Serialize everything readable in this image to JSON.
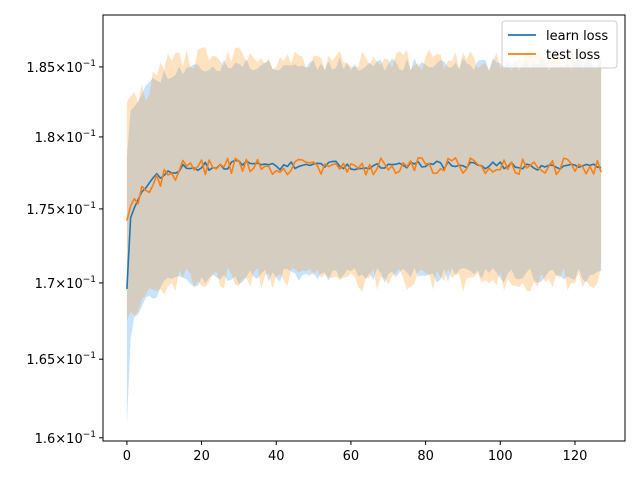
{
  "chart_data": {
    "type": "line",
    "title": "",
    "xlabel": "",
    "ylabel": "",
    "xlim": [
      -6.4,
      133.4
    ],
    "ylim": [
      0.1598,
      0.1888
    ],
    "yscale": "log",
    "x_ticks": [
      0,
      20,
      40,
      60,
      80,
      100,
      120
    ],
    "y_ticks": [
      {
        "value": 0.16,
        "mantissa": "1.6",
        "base": "10",
        "exp": "−1"
      },
      {
        "value": 0.165,
        "mantissa": "1.65",
        "base": "10",
        "exp": "−1"
      },
      {
        "value": 0.17,
        "mantissa": "1.7",
        "base": "10",
        "exp": "−1"
      },
      {
        "value": 0.175,
        "mantissa": "1.75",
        "base": "10",
        "exp": "−1"
      },
      {
        "value": 0.18,
        "mantissa": "1.8",
        "base": "10",
        "exp": "−1"
      },
      {
        "value": 0.185,
        "mantissa": "1.85",
        "base": "10",
        "exp": "−1"
      }
    ],
    "grid": false,
    "legend": "top-right",
    "x": {
      "start": 0,
      "end": 127,
      "step": 1
    },
    "series": [
      {
        "name": "learn loss",
        "color": "#1f77b4",
        "band_color": "#1e90ff",
        "mean_anchors": [
          [
            0,
            0.1696
          ],
          [
            1,
            0.1744
          ],
          [
            3,
            0.1755
          ],
          [
            5,
            0.1765
          ],
          [
            7,
            0.1772
          ],
          [
            10,
            0.1774
          ],
          [
            15,
            0.1778
          ],
          [
            20,
            0.1779
          ],
          [
            30,
            0.1781
          ],
          [
            40,
            0.178
          ],
          [
            60,
            0.178
          ],
          [
            80,
            0.178
          ],
          [
            100,
            0.178
          ],
          [
            127,
            0.1778
          ]
        ],
        "lower_anchors": [
          [
            0,
            0.1608
          ],
          [
            1,
            0.1665
          ],
          [
            3,
            0.1683
          ],
          [
            5,
            0.169
          ],
          [
            8,
            0.1695
          ],
          [
            12,
            0.17
          ],
          [
            20,
            0.1703
          ],
          [
            40,
            0.1705
          ],
          [
            60,
            0.1705
          ],
          [
            80,
            0.1705
          ],
          [
            100,
            0.1705
          ],
          [
            127,
            0.1705
          ]
        ],
        "upper_anchors": [
          [
            0,
            0.1785
          ],
          [
            1,
            0.1823
          ],
          [
            3,
            0.1828
          ],
          [
            5,
            0.1835
          ],
          [
            8,
            0.1842
          ],
          [
            12,
            0.1847
          ],
          [
            20,
            0.185
          ],
          [
            40,
            0.1852
          ],
          [
            60,
            0.1852
          ],
          [
            80,
            0.1852
          ],
          [
            100,
            0.1852
          ],
          [
            127,
            0.1852
          ]
        ],
        "noise": 0.0003,
        "band_noise": 0.0005,
        "seed": 11
      },
      {
        "name": "test loss",
        "color": "#ff7f0e",
        "band_color": "#ff8c00",
        "mean_anchors": [
          [
            0,
            0.1742
          ],
          [
            1,
            0.1752
          ],
          [
            3,
            0.1757
          ],
          [
            5,
            0.1763
          ],
          [
            7,
            0.1768
          ],
          [
            10,
            0.1772
          ],
          [
            15,
            0.1778
          ],
          [
            20,
            0.1779
          ],
          [
            30,
            0.178
          ],
          [
            40,
            0.1779
          ],
          [
            60,
            0.1779
          ],
          [
            80,
            0.178
          ],
          [
            100,
            0.178
          ],
          [
            127,
            0.1779
          ]
        ],
        "lower_anchors": [
          [
            0,
            0.1675
          ],
          [
            1,
            0.1678
          ],
          [
            3,
            0.1685
          ],
          [
            5,
            0.169
          ],
          [
            8,
            0.1697
          ],
          [
            12,
            0.1702
          ],
          [
            20,
            0.1703
          ],
          [
            40,
            0.1703
          ],
          [
            60,
            0.1702
          ],
          [
            80,
            0.1702
          ],
          [
            100,
            0.1702
          ],
          [
            127,
            0.1703
          ]
        ],
        "upper_anchors": [
          [
            0,
            0.1825
          ],
          [
            1,
            0.1825
          ],
          [
            3,
            0.1828
          ],
          [
            5,
            0.1833
          ],
          [
            8,
            0.1845
          ],
          [
            12,
            0.1855
          ],
          [
            20,
            0.1857
          ],
          [
            40,
            0.1856
          ],
          [
            60,
            0.1855
          ],
          [
            80,
            0.1855
          ],
          [
            100,
            0.1855
          ],
          [
            127,
            0.1855
          ]
        ],
        "noise": 0.0006,
        "band_noise": 0.0008,
        "seed": 29
      }
    ]
  }
}
